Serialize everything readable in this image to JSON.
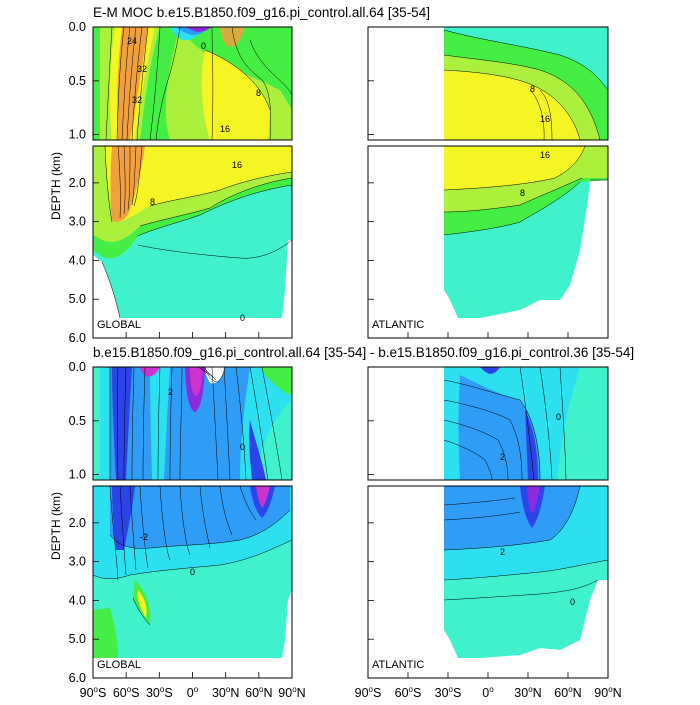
{
  "chart_data": {
    "type": "heatmap",
    "top_title": "E-M MOC  b.e15.B1850.f09_g16.pi_control.all.64 [35-54]",
    "bottom_title": "b.e15.B1850.f09_g16.pi_control.all.64 [35-54] - b.e15.B1850.f09_g16.pi_control.36 [35-54]",
    "ylabel": "DEPTH (km)",
    "upper_yticks": [
      "0.0",
      "0.5",
      "1.0"
    ],
    "lower_yticks": [
      "2.0",
      "3.0",
      "4.0",
      "5.0",
      "6.0"
    ],
    "global_xticks": [
      "90oS",
      "60oS",
      "30oS",
      "0o",
      "30oN",
      "60oN",
      "90oN"
    ],
    "atlantic_xticks": [
      "90oS",
      "60oS",
      "30oS",
      "0o",
      "30oN",
      "60oN",
      "90oN"
    ],
    "global_label": "GLOBAL",
    "atlantic_label": "ATLANTIC",
    "x_range": [
      -90,
      90
    ],
    "y_range_km": [
      6.0,
      0.0
    ],
    "upper_y_range_km": [
      1.05,
      0.0
    ],
    "lower_y_range_km": [
      6.0,
      1.05
    ],
    "contour_labels_top": [
      "32",
      "24",
      "16",
      "8",
      "0",
      "16",
      "8"
    ],
    "contour_labels_bottom": [
      "2",
      "0",
      "-2",
      "2",
      "0"
    ],
    "colors": {
      "orange": "#f0a040",
      "yellow": "#f5f524",
      "light_green": "#aaf03c",
      "green": "#44ee44",
      "cyan": "#3ff2cc",
      "light_blue": "#2ce0f0",
      "blue": "#2f9cf5",
      "dark_blue": "#2b45e8",
      "purple": "#8b2be0",
      "magenta": "#cc33cc"
    }
  }
}
